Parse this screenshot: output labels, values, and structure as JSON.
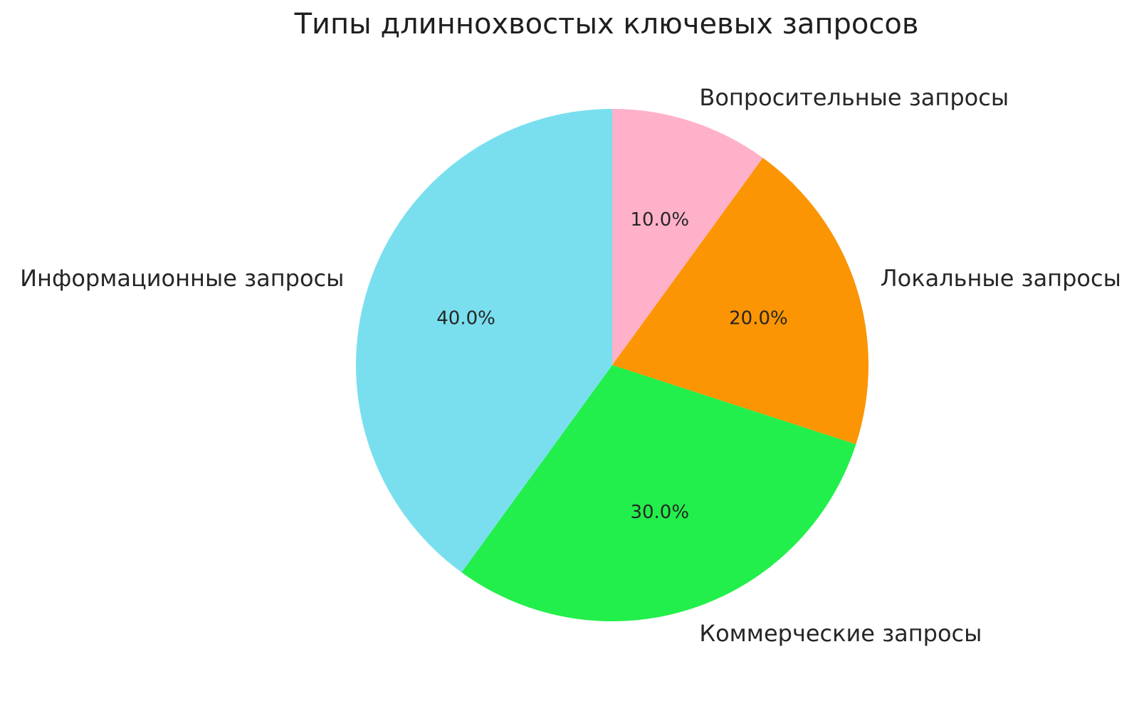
{
  "chart_data": {
    "type": "pie",
    "title": "Типы длиннохвостых ключевых запросов",
    "slices": [
      {
        "label": "Вопросительные запросы",
        "value": 10.0,
        "pct_label": "10.0%",
        "color": "#FFB1C9"
      },
      {
        "label": "Локальные запросы",
        "value": 20.0,
        "pct_label": "20.0%",
        "color": "#FB9503"
      },
      {
        "label": "Коммерческие запросы",
        "value": 30.0,
        "pct_label": "30.0%",
        "color": "#22EF4B"
      },
      {
        "label": "Информационные запросы",
        "value": 40.0,
        "pct_label": "40.0%",
        "color": "#79DFEE"
      }
    ],
    "start_angle": 90,
    "direction": "clockwise",
    "label_distance": 1.1,
    "pct_distance": 0.6,
    "legend": "none",
    "background": "#FFFFFF",
    "text_color": "#262626"
  }
}
